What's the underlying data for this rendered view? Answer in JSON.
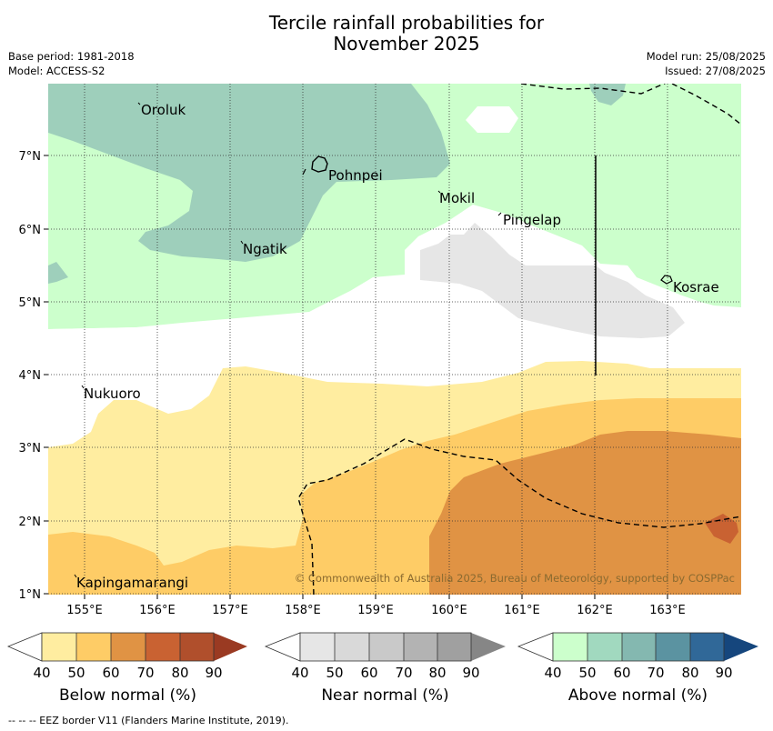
{
  "title_line1": "Tercile rainfall probabilities for",
  "title_line2": "November 2025",
  "base_period": "Base period: 1981-2018",
  "model": "Model: ACCESS-S2",
  "model_run": "Model run: 25/08/2025",
  "issued": "Issued: 27/08/2025",
  "copyright": "© Commonwealth of Australia 2025, Bureau of Meteorology, supported by COSPPac",
  "axes": {
    "x_ticks": [
      "155°E",
      "156°E",
      "157°E",
      "158°E",
      "159°E",
      "160°E",
      "161°E",
      "162°E",
      "163°E"
    ],
    "y_ticks": [
      "7°N",
      "6°N",
      "5°N",
      "4°N",
      "3°N",
      "2°N",
      "1°N"
    ],
    "lon_range": [
      154.5,
      164.0
    ],
    "lat_range": [
      1.0,
      8.0
    ],
    "grid": true
  },
  "places": [
    {
      "name": "Oroluk"
    },
    {
      "name": "Pohnpei"
    },
    {
      "name": "Mokil"
    },
    {
      "name": "Pingelap"
    },
    {
      "name": "Ngatik"
    },
    {
      "name": "Kosrae"
    },
    {
      "name": "Nukuoro"
    },
    {
      "name": "Kapingamarangi"
    }
  ],
  "legends": [
    {
      "title": "Below normal (%)",
      "labels": [
        "40",
        "50",
        "60",
        "70",
        "80",
        "90"
      ],
      "colors": [
        "#ffeda0",
        "#fecc66",
        "#e09344",
        "#c96232",
        "#b04f2c",
        "#9a3a22"
      ]
    },
    {
      "title": "Near normal (%)",
      "labels": [
        "40",
        "50",
        "60",
        "70",
        "80",
        "90"
      ],
      "colors": [
        "#e6e6e6",
        "#d9d9d9",
        "#c9c9c9",
        "#b3b3b3",
        "#a0a0a0",
        "#868686"
      ]
    },
    {
      "title": "Above normal (%)",
      "labels": [
        "40",
        "50",
        "60",
        "70",
        "80",
        "90"
      ],
      "colors": [
        "#ccffcc",
        "#a1d9bf",
        "#84b8b0",
        "#5b93a1",
        "#306898",
        "#15467d"
      ]
    }
  ],
  "footer": "--  --  -- EEZ border V11 (Flanders Marine Institute, 2019).",
  "colors": {
    "above_50": "#ccffcc",
    "above_60": "#9ecfbb",
    "near_50": "#e6e6e6",
    "below_50": "#ffeda0",
    "below_60": "#fecc66",
    "below_70": "#e09344",
    "below_80": "#c96232"
  }
}
